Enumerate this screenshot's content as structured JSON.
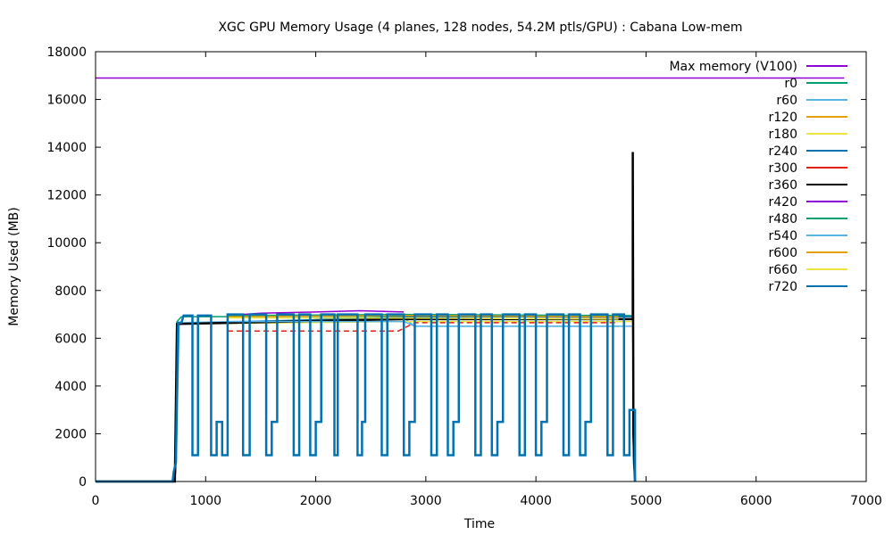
{
  "chart_data": {
    "type": "line",
    "title": "XGC GPU Memory Usage (4 planes, 128 nodes, 54.2M ptls/GPU) : Cabana Low-mem",
    "xlabel": "Time",
    "ylabel": "Memory Used (MB)",
    "xlim": [
      0,
      7000
    ],
    "ylim": [
      0,
      18000
    ],
    "xticks": [
      0,
      1000,
      2000,
      3000,
      4000,
      5000,
      6000,
      7000
    ],
    "yticks": [
      0,
      2000,
      4000,
      6000,
      8000,
      10000,
      12000,
      14000,
      16000,
      18000
    ],
    "grid": false,
    "legend_position": "top-right",
    "series": [
      {
        "name": "Max memory (V100)",
        "color": "#9400d3",
        "points": [
          [
            0,
            16900
          ],
          [
            6800,
            16900
          ]
        ]
      },
      {
        "name": "r0",
        "color": "#009e73",
        "points": [
          [
            0,
            0
          ],
          [
            710,
            0
          ],
          [
            720,
            450
          ],
          [
            740,
            6700
          ],
          [
            780,
            6900
          ],
          [
            2850,
            6920
          ],
          [
            2900,
            6950
          ],
          [
            4750,
            6950
          ],
          [
            4880,
            6950
          ],
          [
            4885,
            1000
          ],
          [
            4900,
            0
          ]
        ]
      },
      {
        "name": "r60",
        "color": "#56b4e9",
        "points": [
          [
            0,
            0
          ],
          [
            710,
            0
          ],
          [
            730,
            400
          ],
          [
            760,
            6650
          ],
          [
            2800,
            6850
          ],
          [
            2900,
            6500
          ],
          [
            4800,
            6500
          ],
          [
            4880,
            6500
          ],
          [
            4885,
            800
          ],
          [
            4900,
            0
          ]
        ]
      },
      {
        "name": "r120",
        "color": "#e69f00",
        "points": [
          [
            0,
            0
          ],
          [
            720,
            0
          ],
          [
            740,
            6600
          ],
          [
            2800,
            6800
          ],
          [
            2900,
            6800
          ],
          [
            4880,
            6800
          ],
          [
            4885,
            1500
          ],
          [
            4900,
            0
          ]
        ]
      },
      {
        "name": "r180",
        "color": "#f0e442",
        "points": [
          [
            0,
            0
          ],
          [
            720,
            0
          ],
          [
            740,
            6600
          ],
          [
            2800,
            6700
          ],
          [
            2900,
            6700
          ],
          [
            4880,
            6700
          ],
          [
            4885,
            1200
          ],
          [
            4900,
            0
          ]
        ]
      },
      {
        "name": "r240",
        "color": "#0072b2",
        "points": [
          [
            0,
            0
          ],
          [
            720,
            0
          ],
          [
            740,
            6600
          ],
          [
            2850,
            6900
          ],
          [
            4880,
            6900
          ],
          [
            4885,
            1000
          ],
          [
            4900,
            0
          ]
        ]
      },
      {
        "name": "r300",
        "color": "#e51e10",
        "points": [
          [
            1200,
            6300
          ],
          [
            2750,
            6300
          ],
          [
            2900,
            6650
          ],
          [
            4750,
            6650
          ]
        ]
      },
      {
        "name": "r360",
        "color": "#000000",
        "points": [
          [
            0,
            0
          ],
          [
            720,
            0
          ],
          [
            740,
            6600
          ],
          [
            2800,
            6800
          ],
          [
            4880,
            6800
          ],
          [
            4880,
            13800
          ],
          [
            4885,
            2000
          ],
          [
            4900,
            0
          ]
        ]
      },
      {
        "name": "r420",
        "color": "#9400d3",
        "points": [
          [
            1200,
            6950
          ],
          [
            1500,
            7050
          ],
          [
            2000,
            7100
          ],
          [
            2400,
            7150
          ],
          [
            2800,
            7100
          ]
        ]
      },
      {
        "name": "r480",
        "color": "#009e73",
        "points": [
          [
            1200,
            6950
          ],
          [
            2800,
            7000
          ],
          [
            4750,
            6950
          ]
        ]
      },
      {
        "name": "r540",
        "color": "#56b4e9",
        "points": [
          [
            1200,
            6700
          ],
          [
            2800,
            6700
          ],
          [
            2900,
            6500
          ],
          [
            4750,
            6500
          ]
        ]
      },
      {
        "name": "r600",
        "color": "#e69f00",
        "points": [
          [
            1200,
            6900
          ],
          [
            2800,
            6950
          ],
          [
            4750,
            6900
          ]
        ]
      },
      {
        "name": "r660",
        "color": "#f0e442",
        "points": [
          [
            1200,
            6850
          ],
          [
            2800,
            6850
          ],
          [
            4750,
            6800
          ]
        ]
      },
      {
        "name": "r720",
        "color": "#0072b2",
        "points": [
          [
            0,
            0
          ],
          [
            700,
            0
          ],
          [
            710,
            400
          ],
          [
            730,
            800
          ],
          [
            750,
            6650
          ],
          [
            780,
            6650
          ],
          [
            800,
            6950
          ],
          [
            880,
            6950
          ],
          [
            880,
            1100
          ],
          [
            930,
            1100
          ],
          [
            930,
            6950
          ],
          [
            1050,
            6950
          ],
          [
            1050,
            1100
          ],
          [
            1100,
            1100
          ],
          [
            1100,
            2500
          ],
          [
            1150,
            2500
          ],
          [
            1150,
            1100
          ],
          [
            1200,
            1100
          ],
          [
            1200,
            7000
          ],
          [
            1340,
            7000
          ],
          [
            1340,
            1100
          ],
          [
            1400,
            1100
          ],
          [
            1400,
            7000
          ],
          [
            1550,
            7000
          ],
          [
            1550,
            1100
          ],
          [
            1600,
            1100
          ],
          [
            1600,
            2500
          ],
          [
            1650,
            2500
          ],
          [
            1650,
            7000
          ],
          [
            1800,
            7000
          ],
          [
            1800,
            1100
          ],
          [
            1850,
            1100
          ],
          [
            1850,
            7000
          ],
          [
            1950,
            7000
          ],
          [
            1950,
            1100
          ],
          [
            2000,
            1100
          ],
          [
            2000,
            2500
          ],
          [
            2050,
            2500
          ],
          [
            2050,
            7000
          ],
          [
            2170,
            7000
          ],
          [
            2170,
            1100
          ],
          [
            2200,
            1100
          ],
          [
            2200,
            7000
          ],
          [
            2380,
            7000
          ],
          [
            2380,
            1100
          ],
          [
            2420,
            1100
          ],
          [
            2420,
            2500
          ],
          [
            2450,
            2500
          ],
          [
            2450,
            7000
          ],
          [
            2600,
            7000
          ],
          [
            2600,
            1100
          ],
          [
            2650,
            1100
          ],
          [
            2650,
            7000
          ],
          [
            2800,
            7000
          ],
          [
            2800,
            1100
          ],
          [
            2850,
            1100
          ],
          [
            2850,
            2500
          ],
          [
            2900,
            2500
          ],
          [
            2900,
            7000
          ],
          [
            3050,
            7000
          ],
          [
            3050,
            1100
          ],
          [
            3100,
            1100
          ],
          [
            3100,
            7000
          ],
          [
            3200,
            7000
          ],
          [
            3200,
            1100
          ],
          [
            3250,
            1100
          ],
          [
            3250,
            2500
          ],
          [
            3300,
            2500
          ],
          [
            3300,
            7000
          ],
          [
            3450,
            7000
          ],
          [
            3450,
            1100
          ],
          [
            3500,
            1100
          ],
          [
            3500,
            7000
          ],
          [
            3600,
            7000
          ],
          [
            3600,
            1100
          ],
          [
            3650,
            1100
          ],
          [
            3650,
            2500
          ],
          [
            3700,
            2500
          ],
          [
            3700,
            7000
          ],
          [
            3850,
            7000
          ],
          [
            3850,
            1100
          ],
          [
            3900,
            1100
          ],
          [
            3900,
            7000
          ],
          [
            4000,
            7000
          ],
          [
            4000,
            1100
          ],
          [
            4050,
            1100
          ],
          [
            4050,
            2500
          ],
          [
            4100,
            2500
          ],
          [
            4100,
            7000
          ],
          [
            4250,
            7000
          ],
          [
            4250,
            1100
          ],
          [
            4300,
            1100
          ],
          [
            4300,
            7000
          ],
          [
            4400,
            7000
          ],
          [
            4400,
            1100
          ],
          [
            4450,
            1100
          ],
          [
            4450,
            2500
          ],
          [
            4500,
            2500
          ],
          [
            4500,
            7000
          ],
          [
            4650,
            7000
          ],
          [
            4650,
            1100
          ],
          [
            4700,
            1100
          ],
          [
            4700,
            7000
          ],
          [
            4800,
            7000
          ],
          [
            4800,
            1100
          ],
          [
            4850,
            1100
          ],
          [
            4850,
            3000
          ],
          [
            4900,
            3000
          ],
          [
            4900,
            0
          ]
        ]
      }
    ]
  }
}
